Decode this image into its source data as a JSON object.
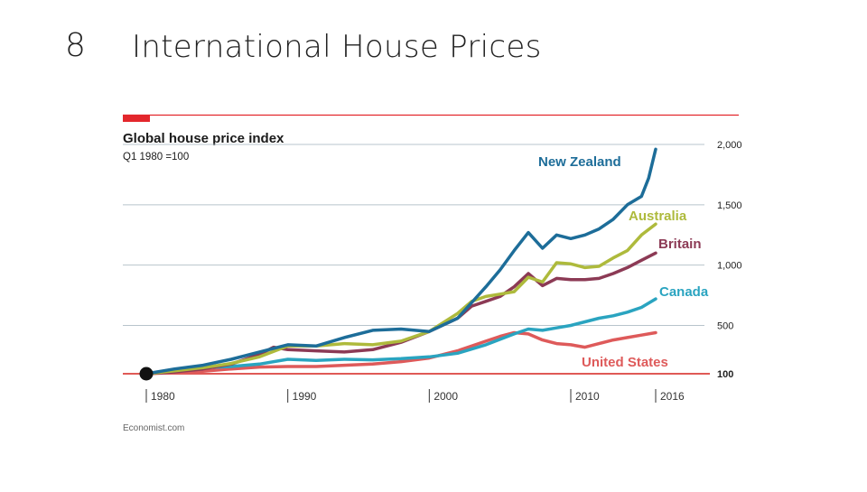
{
  "slide": {
    "number": "8",
    "title": "International House Prices"
  },
  "source": "Economist.com",
  "colors": {
    "accent_red": "#e3272c",
    "grid": "#b8c4cc",
    "baseline": "#e05a56",
    "New Zealand": "#1d6d99",
    "Australia": "#aeba3c",
    "Britain": "#8c3a55",
    "Canada": "#2aa4c0",
    "United States": "#de5a5a"
  },
  "chart_data": {
    "type": "line",
    "title": "Global house price index",
    "subtitle": "Q1 1980 =100",
    "xlim": [
      1980,
      2016
    ],
    "ylim": [
      100,
      2000
    ],
    "x_ticks": [
      "1980",
      "1990",
      "2000",
      "2010",
      "2016"
    ],
    "y_ticks": [
      "2,000",
      "1,500",
      "1,000",
      "500",
      "100"
    ],
    "grid": true,
    "series": [
      {
        "name": "New Zealand",
        "x": [
          1980,
          1982,
          1984,
          1986,
          1988,
          1990,
          1992,
          1994,
          1996,
          1998,
          2000,
          2002,
          2004,
          2005,
          2006,
          2007,
          2008,
          2009,
          2010,
          2011,
          2012,
          2013,
          2014,
          2015,
          2015.5,
          2016
        ],
        "y": [
          100,
          140,
          170,
          220,
          280,
          340,
          330,
          400,
          460,
          470,
          450,
          560,
          820,
          960,
          1120,
          1270,
          1140,
          1250,
          1220,
          1250,
          1300,
          1380,
          1500,
          1570,
          1720,
          1960
        ]
      },
      {
        "name": "Australia",
        "x": [
          1980,
          1982,
          1984,
          1986,
          1988,
          1990,
          1992,
          1994,
          1996,
          1998,
          2000,
          2002,
          2003,
          2004,
          2005,
          2006,
          2007,
          2008,
          2009,
          2010,
          2011,
          2012,
          2013,
          2014,
          2015,
          2016
        ],
        "y": [
          100,
          125,
          150,
          185,
          240,
          330,
          330,
          350,
          340,
          370,
          450,
          600,
          700,
          740,
          760,
          780,
          900,
          860,
          1020,
          1010,
          980,
          990,
          1060,
          1120,
          1250,
          1340
        ]
      },
      {
        "name": "Britain",
        "x": [
          1980,
          1982,
          1984,
          1986,
          1988,
          1989,
          1990,
          1992,
          1994,
          1996,
          1998,
          2000,
          2002,
          2003,
          2004,
          2005,
          2006,
          2007,
          2008,
          2009,
          2010,
          2011,
          2012,
          2013,
          2014,
          2015,
          2016
        ],
        "y": [
          100,
          115,
          140,
          180,
          260,
          320,
          300,
          290,
          280,
          300,
          360,
          450,
          560,
          660,
          700,
          740,
          820,
          930,
          830,
          890,
          880,
          880,
          890,
          930,
          980,
          1040,
          1100
        ]
      },
      {
        "name": "Canada",
        "x": [
          1980,
          1982,
          1984,
          1986,
          1988,
          1990,
          1992,
          1994,
          1996,
          1998,
          2000,
          2002,
          2004,
          2006,
          2007,
          2008,
          2009,
          2010,
          2011,
          2012,
          2013,
          2014,
          2015,
          2016
        ],
        "y": [
          100,
          130,
          150,
          160,
          180,
          220,
          210,
          220,
          215,
          225,
          240,
          270,
          340,
          430,
          470,
          460,
          480,
          500,
          530,
          560,
          580,
          610,
          650,
          720
        ]
      },
      {
        "name": "United States",
        "x": [
          1980,
          1982,
          1984,
          1986,
          1988,
          1990,
          1992,
          1994,
          1996,
          1998,
          2000,
          2002,
          2004,
          2005,
          2006,
          2007,
          2008,
          2009,
          2010,
          2011,
          2012,
          2013,
          2014,
          2015,
          2016
        ],
        "y": [
          100,
          110,
          120,
          140,
          155,
          160,
          160,
          170,
          180,
          200,
          230,
          290,
          370,
          410,
          440,
          430,
          380,
          350,
          340,
          320,
          350,
          380,
          400,
          420,
          440
        ]
      }
    ]
  }
}
